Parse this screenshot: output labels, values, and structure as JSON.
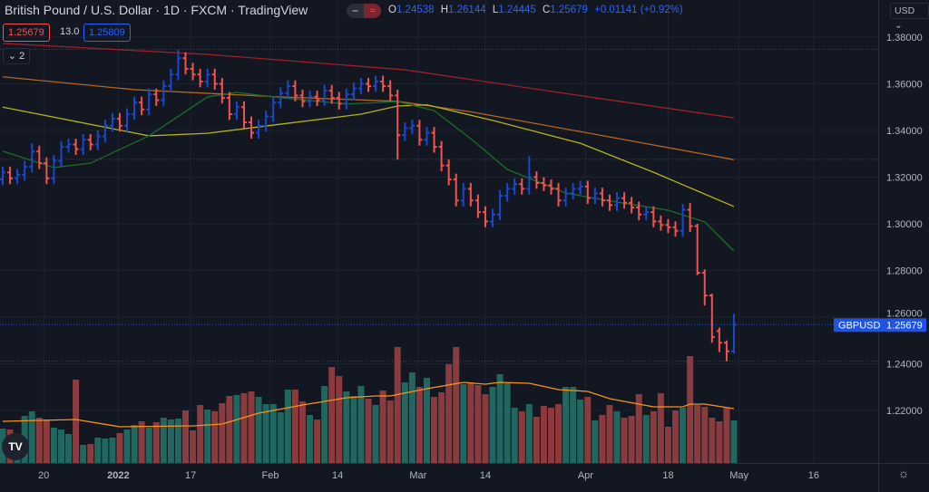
{
  "header": {
    "title": "British Pound / U.S. Dollar · 1D · FXCM · TradingView",
    "toggle_left": "−",
    "toggle_right": "≈",
    "ohlc": {
      "o_label": "O",
      "o": "1.24538",
      "h_label": "H",
      "h": "1.26144",
      "l_label": "L",
      "l": "1.24445",
      "c_label": "C",
      "c": "1.25679",
      "change": "+0.01141 (+0.92%)"
    }
  },
  "quote": {
    "bid": "1.25679",
    "spread": "13.0",
    "ask": "1.25809"
  },
  "indicators_collapse": {
    "icon": "chevron-down-icon",
    "count": "2"
  },
  "currency_button": "USD",
  "price_label": {
    "symbol": "GBPUSD",
    "value": "1.25679"
  },
  "logo_text": "TV",
  "colors": {
    "background": "#131722",
    "up_bar": "#1848cc",
    "down_bar": "#f05350",
    "up_volume": "#22675f",
    "down_volume": "#8b3a3d",
    "ma_red": "#a01e2c",
    "ma_orange": "#b5651d",
    "ma_yellow": "#b5b21e",
    "ma_green": "#1c6b2a",
    "volume_ma": "#f7931a",
    "last_price": "#1e53e5"
  },
  "chart_data": {
    "type": "ohlc",
    "symbol": "GBPUSD",
    "interval": "1D",
    "y_ticks": [
      1.38,
      1.36,
      1.34,
      1.32,
      1.3,
      1.28,
      1.26,
      1.24,
      1.22
    ],
    "y_tick_labels": [
      "1.38000",
      "1.36000",
      "1.34000",
      "1.32000",
      "1.30000",
      "1.28000",
      "1.26000",
      "1.24000",
      "1.22000"
    ],
    "ylim": [
      1.2075,
      1.3815
    ],
    "x_tick_labels": [
      "20",
      "2022",
      "17",
      "Feb",
      "14",
      "Mar",
      "14",
      "Apr",
      "18",
      "May",
      "16"
    ],
    "grid": true,
    "last_price": 1.25679,
    "range_markers": [
      1.3748,
      1.3276,
      1.2411
    ],
    "bars": [
      [
        1.319,
        1.3245,
        1.3165,
        1.322
      ],
      [
        1.322,
        1.3245,
        1.317,
        1.3195
      ],
      [
        1.3195,
        1.3235,
        1.317,
        1.321
      ],
      [
        1.321,
        1.327,
        1.3185,
        1.3245
      ],
      [
        1.3245,
        1.3345,
        1.322,
        1.331
      ],
      [
        1.331,
        1.3335,
        1.3235,
        1.326
      ],
      [
        1.326,
        1.3285,
        1.317,
        1.3195
      ],
      [
        1.3195,
        1.3295,
        1.317,
        1.327
      ],
      [
        1.327,
        1.3355,
        1.3245,
        1.333
      ],
      [
        1.333,
        1.3365,
        1.3305,
        1.334
      ],
      [
        1.334,
        1.3365,
        1.3295,
        1.332
      ],
      [
        1.332,
        1.3385,
        1.3295,
        1.336
      ],
      [
        1.336,
        1.3385,
        1.3315,
        1.334
      ],
      [
        1.334,
        1.34,
        1.3315,
        1.3375
      ],
      [
        1.3375,
        1.3445,
        1.335,
        1.342
      ],
      [
        1.342,
        1.3475,
        1.3395,
        1.345
      ],
      [
        1.345,
        1.3475,
        1.3395,
        1.342
      ],
      [
        1.342,
        1.3495,
        1.3395,
        1.347
      ],
      [
        1.347,
        1.3545,
        1.3445,
        1.352
      ],
      [
        1.352,
        1.3545,
        1.3465,
        1.349
      ],
      [
        1.349,
        1.358,
        1.3465,
        1.3555
      ],
      [
        1.3555,
        1.358,
        1.3505,
        1.353
      ],
      [
        1.353,
        1.3615,
        1.3505,
        1.359
      ],
      [
        1.359,
        1.3665,
        1.3565,
        1.364
      ],
      [
        1.364,
        1.3745,
        1.3615,
        1.371
      ],
      [
        1.371,
        1.3735,
        1.364,
        1.3664
      ],
      [
        1.3664,
        1.369,
        1.3615,
        1.364
      ],
      [
        1.364,
        1.3665,
        1.3585,
        1.361
      ],
      [
        1.361,
        1.3665,
        1.3585,
        1.364
      ],
      [
        1.364,
        1.3665,
        1.3575,
        1.36
      ],
      [
        1.36,
        1.3625,
        1.3515,
        1.354
      ],
      [
        1.354,
        1.3565,
        1.3445,
        1.347
      ],
      [
        1.347,
        1.3525,
        1.3445,
        1.35
      ],
      [
        1.35,
        1.3525,
        1.341,
        1.3435
      ],
      [
        1.3435,
        1.346,
        1.3365,
        1.339
      ],
      [
        1.339,
        1.3445,
        1.3365,
        1.342
      ],
      [
        1.342,
        1.3485,
        1.3395,
        1.346
      ],
      [
        1.346,
        1.3545,
        1.3435,
        1.352
      ],
      [
        1.352,
        1.3585,
        1.3495,
        1.356
      ],
      [
        1.356,
        1.3615,
        1.3535,
        1.359
      ],
      [
        1.359,
        1.3615,
        1.3525,
        1.355
      ],
      [
        1.355,
        1.3575,
        1.35,
        1.3525
      ],
      [
        1.3525,
        1.357,
        1.35,
        1.3545
      ],
      [
        1.3545,
        1.357,
        1.3505,
        1.353
      ],
      [
        1.353,
        1.3595,
        1.3505,
        1.357
      ],
      [
        1.357,
        1.3595,
        1.3515,
        1.354
      ],
      [
        1.354,
        1.3565,
        1.349,
        1.3515
      ],
      [
        1.3515,
        1.358,
        1.349,
        1.3555
      ],
      [
        1.3555,
        1.3605,
        1.353,
        1.358
      ],
      [
        1.358,
        1.3625,
        1.3555,
        1.36
      ],
      [
        1.36,
        1.3625,
        1.3565,
        1.359
      ],
      [
        1.359,
        1.3635,
        1.3565,
        1.361
      ],
      [
        1.361,
        1.3635,
        1.3565,
        1.359
      ],
      [
        1.359,
        1.3615,
        1.3525,
        1.355
      ],
      [
        1.355,
        1.3575,
        1.3275,
        1.338
      ],
      [
        1.338,
        1.3435,
        1.3355,
        1.341
      ],
      [
        1.341,
        1.3445,
        1.3385,
        1.342
      ],
      [
        1.342,
        1.3445,
        1.3335,
        1.336
      ],
      [
        1.336,
        1.3415,
        1.3335,
        1.339
      ],
      [
        1.339,
        1.3415,
        1.3305,
        1.333
      ],
      [
        1.333,
        1.3355,
        1.3225,
        1.325
      ],
      [
        1.325,
        1.3275,
        1.3165,
        1.319
      ],
      [
        1.319,
        1.3215,
        1.3075,
        1.31
      ],
      [
        1.31,
        1.3175,
        1.3075,
        1.315
      ],
      [
        1.315,
        1.3175,
        1.3075,
        1.31
      ],
      [
        1.31,
        1.3125,
        1.3025,
        1.305
      ],
      [
        1.305,
        1.3075,
        1.2985,
        1.301
      ],
      [
        1.301,
        1.3065,
        1.2985,
        1.304
      ],
      [
        1.304,
        1.3145,
        1.3015,
        1.312
      ],
      [
        1.312,
        1.3175,
        1.3095,
        1.315
      ],
      [
        1.315,
        1.3195,
        1.3125,
        1.317
      ],
      [
        1.317,
        1.3195,
        1.3125,
        1.315
      ],
      [
        1.315,
        1.329,
        1.3125,
        1.32
      ],
      [
        1.32,
        1.3225,
        1.315,
        1.3175
      ],
      [
        1.3175,
        1.32,
        1.314,
        1.3165
      ],
      [
        1.3165,
        1.319,
        1.3125,
        1.315
      ],
      [
        1.315,
        1.3175,
        1.3075,
        1.31
      ],
      [
        1.31,
        1.3155,
        1.3075,
        1.313
      ],
      [
        1.313,
        1.3175,
        1.3105,
        1.315
      ],
      [
        1.315,
        1.3185,
        1.3125,
        1.316
      ],
      [
        1.316,
        1.3185,
        1.3085,
        1.311
      ],
      [
        1.311,
        1.3155,
        1.3085,
        1.313
      ],
      [
        1.313,
        1.3155,
        1.3075,
        1.31
      ],
      [
        1.31,
        1.3125,
        1.3055,
        1.308
      ],
      [
        1.308,
        1.3135,
        1.3055,
        1.311
      ],
      [
        1.311,
        1.3135,
        1.3065,
        1.309
      ],
      [
        1.309,
        1.3115,
        1.3045,
        1.307
      ],
      [
        1.307,
        1.3095,
        1.3015,
        1.304
      ],
      [
        1.304,
        1.3075,
        1.3015,
        1.305
      ],
      [
        1.305,
        1.3075,
        1.2985,
        1.301
      ],
      [
        1.301,
        1.3035,
        1.297,
        1.2995
      ],
      [
        1.2995,
        1.302,
        1.296,
        1.2985
      ],
      [
        1.2985,
        1.301,
        1.2945,
        1.297
      ],
      [
        1.297,
        1.3085,
        1.2945,
        1.306
      ],
      [
        1.306,
        1.309,
        1.2965,
        1.299
      ],
      [
        1.299,
        1.3,
        1.278,
        1.279
      ],
      [
        1.279,
        1.2805,
        1.265,
        1.2693
      ],
      [
        1.2693,
        1.27,
        1.249,
        1.2515
      ],
      [
        1.254,
        1.2555,
        1.245,
        1.249
      ],
      [
        1.249,
        1.25,
        1.2411,
        1.2454
      ],
      [
        1.24538,
        1.26144,
        1.24445,
        1.25679
      ]
    ],
    "volume_relative": [
      38,
      37,
      31,
      52,
      57,
      50,
      48,
      39,
      37,
      32,
      92,
      20,
      21,
      28,
      27,
      28,
      33,
      37,
      42,
      46,
      39,
      45,
      50,
      48,
      49,
      58,
      36,
      64,
      59,
      57,
      66,
      74,
      75,
      77,
      79,
      73,
      65,
      65,
      56,
      81,
      81,
      68,
      53,
      48,
      85,
      106,
      96,
      79,
      74,
      85,
      71,
      64,
      80,
      69,
      128,
      89,
      100,
      84,
      94,
      73,
      78,
      109,
      128,
      87,
      89,
      86,
      76,
      84,
      98,
      88,
      61,
      57,
      65,
      51,
      63,
      61,
      65,
      84,
      84,
      70,
      73,
      47,
      53,
      64,
      57,
      50,
      52,
      76,
      53,
      57,
      77,
      40,
      58,
      61,
      118,
      64,
      62,
      50,
      46,
      61,
      47
    ],
    "volume_up": [
      1,
      0,
      1,
      1,
      1,
      0,
      0,
      1,
      1,
      1,
      0,
      1,
      0,
      1,
      1,
      1,
      0,
      1,
      1,
      0,
      1,
      0,
      1,
      1,
      1,
      0,
      0,
      0,
      1,
      0,
      0,
      0,
      1,
      0,
      0,
      1,
      1,
      1,
      1,
      1,
      0,
      0,
      1,
      0,
      1,
      0,
      0,
      1,
      1,
      1,
      0,
      1,
      0,
      0,
      0,
      1,
      1,
      0,
      1,
      0,
      0,
      0,
      0,
      1,
      0,
      0,
      0,
      1,
      1,
      1,
      1,
      0,
      1,
      0,
      0,
      0,
      0,
      1,
      1,
      1,
      0,
      1,
      0,
      0,
      1,
      0,
      0,
      0,
      1,
      0,
      0,
      0,
      0,
      1,
      0,
      0,
      0,
      0,
      0,
      0,
      1
    ],
    "volume_ma": [
      [
        0,
        46
      ],
      [
        10,
        48
      ],
      [
        16,
        40
      ],
      [
        26,
        41
      ],
      [
        30,
        43
      ],
      [
        35,
        55
      ],
      [
        41,
        64
      ],
      [
        47,
        72
      ],
      [
        51,
        74
      ],
      [
        53,
        74
      ],
      [
        58,
        82
      ],
      [
        63,
        89
      ],
      [
        66,
        87
      ],
      [
        68,
        89
      ],
      [
        72,
        88
      ],
      [
        76,
        81
      ],
      [
        80,
        79
      ],
      [
        83,
        71
      ],
      [
        87,
        65
      ],
      [
        89,
        62
      ],
      [
        93,
        62
      ],
      [
        94,
        65
      ],
      [
        96,
        65
      ],
      [
        100,
        60
      ]
    ],
    "moving_averages": [
      {
        "color_key": "ma_red",
        "points": [
          [
            0,
            1.3773
          ],
          [
            28,
            1.3726
          ],
          [
            55,
            1.366
          ],
          [
            81,
            1.354
          ],
          [
            100,
            1.3454
          ]
        ]
      },
      {
        "color_key": "ma_orange",
        "points": [
          [
            0,
            1.363
          ],
          [
            18,
            1.3575
          ],
          [
            37,
            1.3545
          ],
          [
            54,
            1.3525
          ],
          [
            64,
            1.348
          ],
          [
            79,
            1.3395
          ],
          [
            100,
            1.3275
          ]
        ]
      },
      {
        "color_key": "ma_yellow",
        "points": [
          [
            0,
            1.35
          ],
          [
            20,
            1.3377
          ],
          [
            28,
            1.3388
          ],
          [
            37,
            1.3423
          ],
          [
            49,
            1.347
          ],
          [
            54,
            1.3505
          ],
          [
            58,
            1.351
          ],
          [
            67,
            1.3443
          ],
          [
            79,
            1.3345
          ],
          [
            89,
            1.3221
          ],
          [
            100,
            1.3074
          ]
        ]
      },
      {
        "color_key": "ma_green",
        "points": [
          [
            0,
            1.3311
          ],
          [
            7,
            1.3241
          ],
          [
            12,
            1.326
          ],
          [
            20,
            1.3377
          ],
          [
            28,
            1.3544
          ],
          [
            32,
            1.3563
          ],
          [
            37,
            1.3544
          ],
          [
            47,
            1.3513
          ],
          [
            54,
            1.3524
          ],
          [
            59,
            1.3485
          ],
          [
            64,
            1.3365
          ],
          [
            69,
            1.3233
          ],
          [
            77,
            1.3132
          ],
          [
            84,
            1.3093
          ],
          [
            91,
            1.3058
          ],
          [
            96,
            1.3008
          ],
          [
            100,
            1.2883
          ]
        ]
      }
    ]
  }
}
